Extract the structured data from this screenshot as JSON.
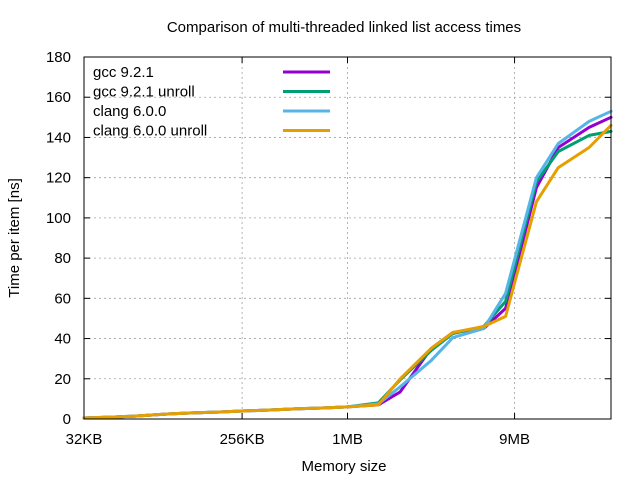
{
  "chart_data": {
    "type": "line",
    "title": "Comparison of multi-threaded linked list access times",
    "xlabel": "Memory size",
    "ylabel": "Time per item [ns]",
    "xscale": "log2",
    "xlim_kb": [
      32,
      32768
    ],
    "ylim": [
      0,
      180
    ],
    "yticks": [
      0,
      20,
      40,
      60,
      80,
      100,
      120,
      140,
      160,
      180
    ],
    "xticks": [
      {
        "label": "32KB",
        "kb": 32
      },
      {
        "label": "256KB",
        "kb": 256
      },
      {
        "label": "1MB",
        "kb": 1024
      },
      {
        "label": "9MB",
        "kb": 9216
      }
    ],
    "grid": true,
    "legend_position": "top-left",
    "x_kb": [
      32,
      48,
      64,
      96,
      128,
      192,
      256,
      384,
      512,
      768,
      1024,
      1536,
      2048,
      3072,
      4096,
      6144,
      8192,
      12288,
      16384,
      24576,
      32768
    ],
    "series": [
      {
        "name": "gcc 9.2.1",
        "color": "#9400d3",
        "values": [
          0.5,
          1,
          1.5,
          2.5,
          3,
          3.5,
          4,
          4.5,
          5,
          5.5,
          6,
          7,
          13.5,
          35,
          43,
          45,
          55,
          115,
          135,
          145,
          150
        ]
      },
      {
        "name": "gcc 9.2.1 unroll",
        "color": "#009e73",
        "values": [
          0.5,
          1,
          1.5,
          2.5,
          3,
          3.5,
          4,
          4.5,
          5,
          5.5,
          6,
          8,
          19.5,
          34,
          42.5,
          46,
          58.5,
          118,
          133,
          141,
          143
        ]
      },
      {
        "name": "clang 6.0.0",
        "color": "#56b4e9",
        "values": [
          0.5,
          1,
          1.5,
          2.5,
          3,
          3.5,
          4,
          4.5,
          5,
          5.5,
          6,
          7.5,
          16,
          29,
          40.5,
          45,
          62.5,
          120,
          137,
          148,
          153
        ]
      },
      {
        "name": "clang 6.0.0 unroll",
        "color": "#e69f00",
        "values": [
          0.5,
          1,
          1.5,
          2.5,
          3,
          3.5,
          4,
          4.5,
          5,
          5.5,
          6,
          7,
          20,
          35,
          43,
          46,
          51,
          108,
          125,
          135,
          146
        ]
      }
    ]
  }
}
